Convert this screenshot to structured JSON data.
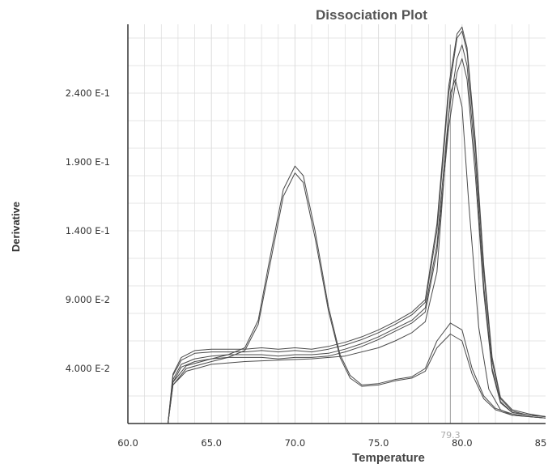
{
  "chart_data": {
    "type": "line",
    "title": "Dissociation Plot",
    "xlabel": "Temperature",
    "ylabel": "Derivative",
    "xlim": [
      60.0,
      85.0
    ],
    "ylim": [
      0.0,
      0.29
    ],
    "grid": true,
    "x_ticks": [
      "60.0",
      "65.0",
      "70.0",
      "75.0",
      "80.0",
      "85"
    ],
    "x_tick_values": [
      60,
      65,
      70,
      75,
      80,
      85
    ],
    "y_ticks": [
      "4.000 E-2",
      "9.000 E-2",
      "1.400 E-1",
      "1.900 E-1",
      "2.400 E-1"
    ],
    "y_tick_values": [
      0.04,
      0.09,
      0.14,
      0.19,
      0.24
    ],
    "marker": {
      "x": 79.3,
      "label": "79.3"
    },
    "colors": {
      "curve": "#4a4a4a",
      "grid": "#dcdcdc",
      "marker": "#9a9a9a",
      "axis": "#333333"
    },
    "series": [
      {
        "x": [
          60,
          62.4,
          62.7,
          63.2,
          64,
          65,
          66,
          67,
          68,
          69,
          70,
          71,
          72,
          73,
          74,
          75,
          76,
          77,
          77.8,
          78.5,
          79.2,
          79.7,
          80,
          80.3,
          80.8,
          81.3,
          81.8,
          82.3,
          83,
          84,
          85
        ],
        "y": [
          0,
          0,
          0.035,
          0.046,
          0.051,
          0.052,
          0.052,
          0.052,
          0.053,
          0.052,
          0.053,
          0.052,
          0.054,
          0.057,
          0.061,
          0.066,
          0.072,
          0.079,
          0.088,
          0.14,
          0.24,
          0.28,
          0.285,
          0.27,
          0.2,
          0.11,
          0.045,
          0.018,
          0.009,
          0.006,
          0.005
        ]
      },
      {
        "x": [
          60,
          62.4,
          62.7,
          63.2,
          64,
          65,
          66,
          67,
          68,
          69,
          70,
          71,
          72,
          73,
          74,
          75,
          76,
          77,
          77.8,
          78.5,
          79.2,
          79.7,
          80,
          80.3,
          80.8,
          81.3,
          81.8,
          82.3,
          83,
          84,
          85
        ],
        "y": [
          0,
          0,
          0.032,
          0.043,
          0.047,
          0.049,
          0.05,
          0.05,
          0.05,
          0.049,
          0.05,
          0.05,
          0.051,
          0.054,
          0.058,
          0.063,
          0.069,
          0.075,
          0.084,
          0.13,
          0.225,
          0.265,
          0.275,
          0.26,
          0.19,
          0.1,
          0.04,
          0.016,
          0.008,
          0.006,
          0.005
        ]
      },
      {
        "x": [
          60,
          62.4,
          62.7,
          63.2,
          64,
          65,
          66,
          67,
          68,
          69,
          70,
          71,
          72,
          73,
          74,
          75,
          76,
          77,
          77.8,
          78.5,
          79.2,
          79.7,
          80,
          80.3,
          80.8,
          81.3,
          81.8,
          82.3,
          83,
          84,
          85
        ],
        "y": [
          0,
          0,
          0.03,
          0.041,
          0.045,
          0.047,
          0.048,
          0.048,
          0.048,
          0.047,
          0.048,
          0.048,
          0.049,
          0.052,
          0.056,
          0.061,
          0.067,
          0.073,
          0.081,
          0.125,
          0.215,
          0.255,
          0.265,
          0.25,
          0.18,
          0.095,
          0.038,
          0.015,
          0.008,
          0.006,
          0.005
        ]
      },
      {
        "x": [
          60,
          62.4,
          62.7,
          63.2,
          64,
          65,
          66,
          67,
          68,
          69,
          70,
          71,
          72,
          73,
          74,
          75,
          76,
          77,
          77.8,
          78.5,
          79.2,
          79.7,
          80,
          80.3,
          80.8,
          81.3,
          81.8,
          82.3,
          83,
          84,
          85
        ],
        "y": [
          0,
          0,
          0.036,
          0.048,
          0.053,
          0.054,
          0.054,
          0.054,
          0.055,
          0.054,
          0.055,
          0.054,
          0.056,
          0.059,
          0.063,
          0.068,
          0.074,
          0.081,
          0.09,
          0.145,
          0.245,
          0.283,
          0.288,
          0.273,
          0.205,
          0.115,
          0.048,
          0.019,
          0.01,
          0.007,
          0.005
        ]
      },
      {
        "x": [
          60,
          62.4,
          62.7,
          63.5,
          65,
          66,
          67,
          67.8,
          68.5,
          69.3,
          70,
          70.5,
          71.2,
          72,
          72.7,
          73.3,
          74,
          75,
          76,
          77,
          77.8,
          78.5,
          79.3,
          80,
          80.6,
          81.3,
          82,
          83,
          84,
          85
        ],
        "y": [
          0,
          0,
          0.03,
          0.042,
          0.047,
          0.05,
          0.055,
          0.075,
          0.12,
          0.17,
          0.187,
          0.18,
          0.14,
          0.085,
          0.05,
          0.035,
          0.028,
          0.029,
          0.032,
          0.034,
          0.04,
          0.06,
          0.073,
          0.068,
          0.04,
          0.02,
          0.011,
          0.007,
          0.005,
          0.004
        ]
      },
      {
        "x": [
          60,
          62.4,
          62.7,
          63.5,
          65,
          66,
          67,
          67.8,
          68.5,
          69.3,
          70,
          70.5,
          71.2,
          72,
          72.7,
          73.3,
          74,
          75,
          76,
          77,
          77.8,
          78.5,
          79.3,
          80,
          80.6,
          81.3,
          82,
          83,
          84,
          85
        ],
        "y": [
          0,
          0,
          0.028,
          0.04,
          0.045,
          0.048,
          0.053,
          0.072,
          0.115,
          0.165,
          0.182,
          0.175,
          0.135,
          0.082,
          0.048,
          0.033,
          0.027,
          0.028,
          0.031,
          0.033,
          0.038,
          0.055,
          0.065,
          0.06,
          0.036,
          0.018,
          0.01,
          0.006,
          0.005,
          0.004
        ]
      },
      {
        "x": [
          60,
          62.4,
          62.7,
          63.5,
          65,
          67,
          69,
          71,
          73,
          75,
          76,
          77,
          77.8,
          78.5,
          79.3,
          79.6,
          80,
          80.4,
          81,
          81.6,
          82.3,
          83,
          84,
          85
        ],
        "y": [
          0,
          0,
          0.028,
          0.038,
          0.043,
          0.045,
          0.046,
          0.047,
          0.049,
          0.055,
          0.06,
          0.066,
          0.074,
          0.11,
          0.24,
          0.25,
          0.23,
          0.16,
          0.07,
          0.025,
          0.01,
          0.006,
          0.005,
          0.004
        ]
      }
    ]
  }
}
